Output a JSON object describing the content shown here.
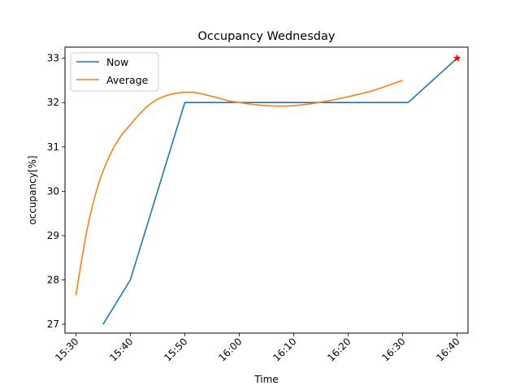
{
  "chart_data": {
    "type": "line",
    "title": "Occupancy Wednesday",
    "xlabel": "Time",
    "ylabel": "occupancy[%]",
    "xlim": [
      "15:28",
      "16:42"
    ],
    "ylim": [
      26.8,
      33.25
    ],
    "x_ticks": [
      "15:30",
      "15:40",
      "15:50",
      "16:00",
      "16:10",
      "16:20",
      "16:30",
      "16:40"
    ],
    "y_ticks": [
      27,
      28,
      29,
      30,
      31,
      32,
      33
    ],
    "grid": false,
    "legend_placement": "top-left",
    "series": [
      {
        "name": "Now",
        "color": "#1f77b4",
        "points": [
          {
            "x": "15:35",
            "y": 27.0
          },
          {
            "x": "15:40",
            "y": 28.0
          },
          {
            "x": "15:50",
            "y": 32.0
          },
          {
            "x": "16:31",
            "y": 32.0
          },
          {
            "x": "16:40",
            "y": 33.0
          }
        ]
      },
      {
        "name": "Average",
        "color": "#ff7f0e",
        "points": [
          {
            "x": "15:30",
            "y": 27.65
          },
          {
            "x": "15:32",
            "y": 29.1
          },
          {
            "x": "15:34",
            "y": 30.1
          },
          {
            "x": "15:36",
            "y": 30.75
          },
          {
            "x": "15:38",
            "y": 31.2
          },
          {
            "x": "15:40",
            "y": 31.5
          },
          {
            "x": "15:42",
            "y": 31.78
          },
          {
            "x": "15:44",
            "y": 32.0
          },
          {
            "x": "15:46",
            "y": 32.13
          },
          {
            "x": "15:48",
            "y": 32.2
          },
          {
            "x": "15:50",
            "y": 32.23
          },
          {
            "x": "15:52",
            "y": 32.22
          },
          {
            "x": "15:55",
            "y": 32.14
          },
          {
            "x": "15:58",
            "y": 32.04
          },
          {
            "x": "16:00",
            "y": 32.0
          },
          {
            "x": "16:03",
            "y": 31.95
          },
          {
            "x": "16:07",
            "y": 31.92
          },
          {
            "x": "16:10",
            "y": 31.93
          },
          {
            "x": "16:13",
            "y": 31.97
          },
          {
            "x": "16:16",
            "y": 32.03
          },
          {
            "x": "16:20",
            "y": 32.13
          },
          {
            "x": "16:24",
            "y": 32.25
          },
          {
            "x": "16:27",
            "y": 32.37
          },
          {
            "x": "16:30",
            "y": 32.5
          }
        ]
      }
    ],
    "marker": {
      "x": "16:40",
      "y": 33.0,
      "color": "#ff0000",
      "shape": "star"
    }
  }
}
